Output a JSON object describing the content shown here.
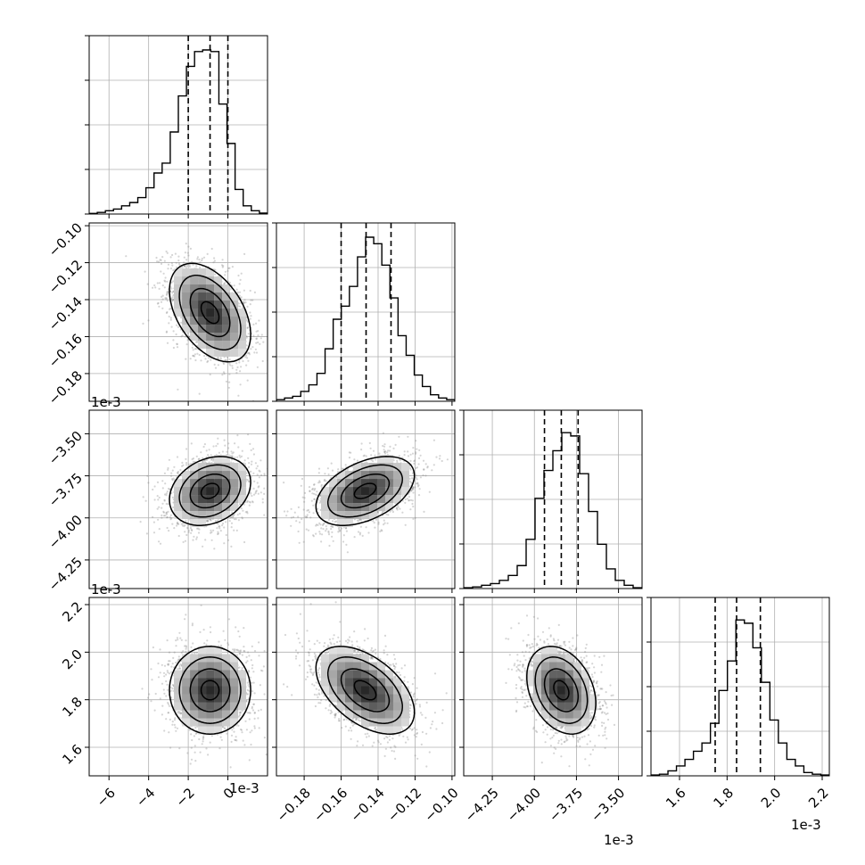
{
  "chart_data": {
    "type": "corner",
    "n_params": 4,
    "grid": true,
    "offset_labels": [
      {
        "id": "x0",
        "text": "1e-3"
      },
      {
        "id": "x2",
        "text": "1e-3"
      },
      {
        "id": "x3",
        "text": "1e-3"
      },
      {
        "id": "y2",
        "text": "1e-3"
      },
      {
        "id": "y3",
        "text": "1e-3"
      }
    ],
    "params": [
      {
        "range": [
          -7.0,
          2.0
        ],
        "ticks": [
          -6,
          -4,
          -2,
          0
        ],
        "tick_labels": [
          "−6",
          "−4",
          "−2",
          "0"
        ],
        "quantiles": [
          -2.0,
          -0.9,
          0.0
        ],
        "hist": [
          0.004,
          0.01,
          0.02,
          0.03,
          0.05,
          0.07,
          0.1,
          0.16,
          0.25,
          0.31,
          0.5,
          0.72,
          0.9,
          0.99,
          1.0,
          0.99,
          0.67,
          0.43,
          0.15,
          0.05,
          0.02,
          0.006
        ],
        "mean": -0.9,
        "sd": 1.0
      },
      {
        "range": [
          -0.195,
          -0.0985
        ],
        "ticks": [
          -0.18,
          -0.16,
          -0.14,
          -0.12,
          -0.1
        ],
        "tick_labels": [
          "−0.18",
          "−0.16",
          "−0.14",
          "−0.12",
          "−0.10"
        ],
        "quantiles": [
          -0.16,
          -0.1465,
          -0.133
        ],
        "hist": [
          0.01,
          0.02,
          0.03,
          0.06,
          0.1,
          0.17,
          0.32,
          0.5,
          0.58,
          0.7,
          0.88,
          1.0,
          0.96,
          0.83,
          0.63,
          0.4,
          0.28,
          0.16,
          0.09,
          0.04,
          0.02,
          0.01
        ],
        "mean": -0.147,
        "sd": 0.013
      },
      {
        "range": [
          -4.42,
          -3.36
        ],
        "ticks": [
          -4.25,
          -4.0,
          -3.75,
          -3.5
        ],
        "tick_labels": [
          "−4.25",
          "−4.00",
          "−3.75",
          "−3.50"
        ],
        "quantiles": [
          -3.94,
          -3.84,
          -3.74
        ],
        "hist": [
          0.005,
          0.01,
          0.02,
          0.03,
          0.05,
          0.08,
          0.14,
          0.3,
          0.55,
          0.72,
          0.84,
          0.95,
          0.93,
          0.7,
          0.47,
          0.27,
          0.12,
          0.05,
          0.02,
          0.005
        ],
        "mean": -3.84,
        "sd": 0.1
      },
      {
        "range": [
          1.48,
          2.23
        ],
        "ticks": [
          1.6,
          1.8,
          2.0,
          2.2
        ],
        "tick_labels": [
          "1.6",
          "1.8",
          "2.0",
          "2.2"
        ],
        "quantiles": [
          1.75,
          1.84,
          1.94
        ],
        "hist": [
          0.005,
          0.01,
          0.03,
          0.06,
          0.1,
          0.15,
          0.2,
          0.32,
          0.52,
          0.7,
          0.95,
          0.93,
          0.78,
          0.57,
          0.34,
          0.2,
          0.1,
          0.06,
          0.02,
          0.01,
          0.005
        ],
        "mean": 1.84,
        "sd": 0.09
      }
    ],
    "pair_correlations": {
      "1_0": -0.45,
      "2_0": 0.25,
      "2_1": 0.45,
      "3_0": 0.0,
      "3_1": -0.5,
      "3_2": -0.3
    }
  }
}
